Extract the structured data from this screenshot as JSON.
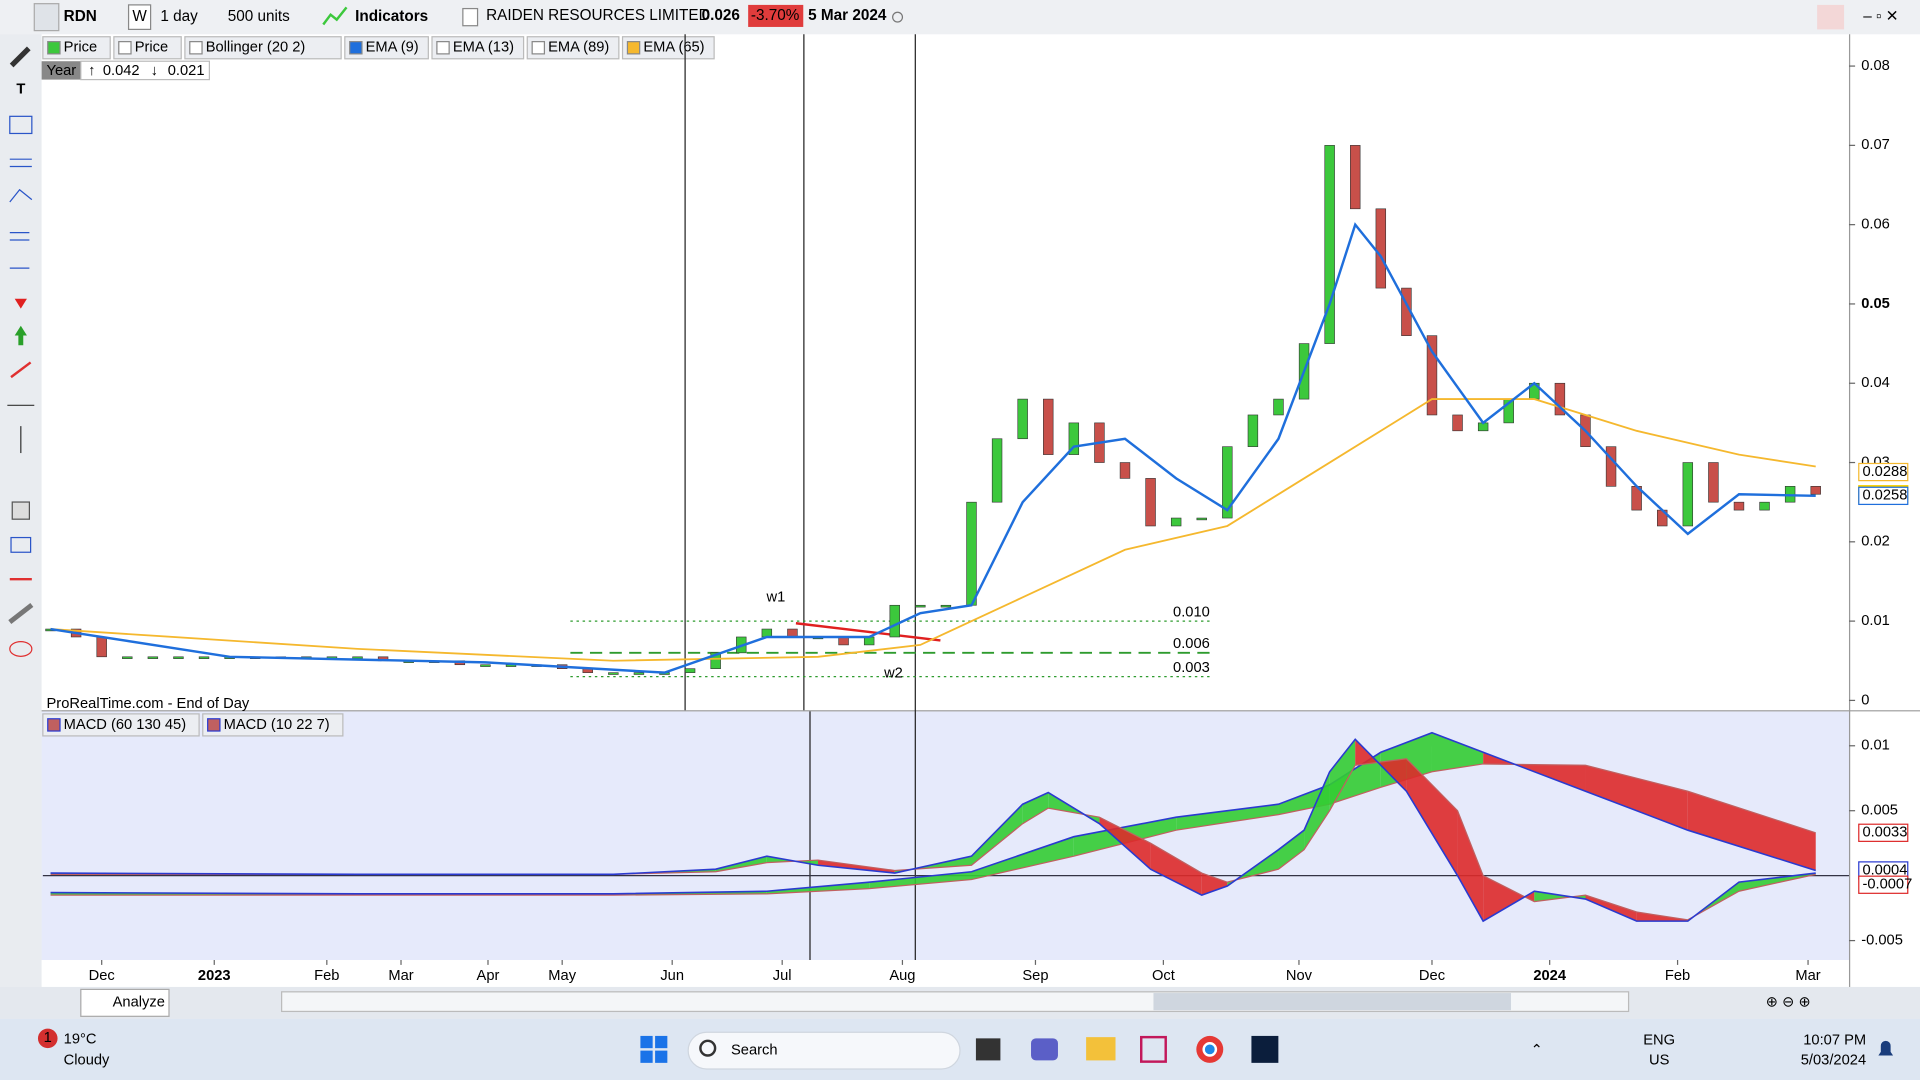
{
  "toolbar": {
    "symbol": "RDN",
    "period_button": "W",
    "timeframe": "1 day",
    "units": "500 units",
    "indicators": "Indicators",
    "instrument": "RAIDEN RESOURCES LIMITED",
    "last": "0.026",
    "change": "-3.70%",
    "date": "5 Mar 2024"
  },
  "legend": [
    "Price",
    "Price",
    "Bollinger (20 2)",
    "EMA (9)",
    "EMA (13)",
    "EMA (89)",
    "EMA (65)"
  ],
  "period": {
    "label": "Year",
    "high": "0.042",
    "low": "0.021"
  },
  "watermark": "ProRealTime.com - End of Day",
  "chart_data": [
    {
      "type": "candles",
      "xlim": [
        -2.3,
        68.3
      ],
      "xticks": [
        {
          "value": 0,
          "label": "Dec"
        },
        {
          "value": 4.4,
          "label": "2023"
        },
        {
          "value": 8.8,
          "label": "Feb"
        },
        {
          "value": 11.7,
          "label": "Mar"
        },
        {
          "value": 15.1,
          "label": "Apr"
        },
        {
          "value": 18,
          "label": "May"
        },
        {
          "value": 22.3,
          "label": "Jun"
        },
        {
          "value": 26.6,
          "label": "Jul"
        },
        {
          "value": 31.3,
          "label": "Aug"
        },
        {
          "value": 36.5,
          "label": "Sep"
        },
        {
          "value": 41.5,
          "label": "Oct"
        },
        {
          "value": 46.8,
          "label": "Nov"
        },
        {
          "value": 52,
          "label": "Dec"
        },
        {
          "value": 56.6,
          "label": "2024"
        },
        {
          "value": 61.6,
          "label": "Feb"
        },
        {
          "value": 66.7,
          "label": "Mar"
        }
      ],
      "ylim": [
        0,
        0.0837
      ],
      "yticks": [
        0,
        0.01,
        0.02,
        0.03,
        0.04,
        0.05,
        0.06,
        0.07,
        0.08
      ],
      "up_color": "#3cc83c",
      "down_color": "#c8504a",
      "series": [
        {
          "color": "#888888",
          "x": [
            -2,
            -1,
            0,
            1,
            2,
            3,
            4,
            5,
            6,
            7,
            8,
            9,
            10,
            11,
            12,
            13,
            14,
            15,
            16,
            17,
            18,
            19,
            20,
            21,
            22,
            23,
            24,
            25,
            26,
            27,
            28,
            29,
            30,
            31,
            32,
            33,
            34,
            35,
            36,
            37,
            38,
            39,
            40,
            41,
            42,
            43,
            44,
            45,
            46,
            47,
            48,
            49,
            50,
            51,
            52,
            53,
            54,
            55,
            56,
            57,
            58,
            59,
            60,
            61,
            62,
            63,
            64,
            65,
            66,
            67
          ],
          "values": [
            0.009,
            0.008,
            0.0055,
            0.0055,
            0.0055,
            0.0055,
            0.0055,
            0.0055,
            0.0055,
            0.0055,
            0.0055,
            0.0055,
            0.0055,
            0.005,
            0.005,
            0.005,
            0.0045,
            0.0045,
            0.0045,
            0.0045,
            0.004,
            0.0035,
            0.0035,
            0.0035,
            0.0035,
            0.004,
            0.006,
            0.008,
            0.009,
            0.008,
            0.008,
            0.007,
            0.008,
            0.012,
            0.012,
            0.012,
            0.025,
            0.033,
            0.038,
            0.031,
            0.035,
            0.03,
            0.028,
            0.022,
            0.023,
            0.023,
            0.032,
            0.036,
            0.038,
            0.045,
            0.07,
            0.062,
            0.052,
            0.046,
            0.036,
            0.034,
            0.035,
            0.038,
            0.04,
            0.036,
            0.032,
            0.027,
            0.024,
            0.022,
            0.03,
            0.025,
            0.024,
            0.025,
            0.027,
            0.026
          ]
        },
        {
          "color": "#1f6fdc",
          "x": [
            -2,
            5,
            15,
            22,
            26,
            30,
            32,
            34,
            36,
            38,
            40,
            42,
            44,
            46,
            48,
            49,
            50,
            52,
            54,
            56,
            58,
            60,
            62,
            64,
            67
          ],
          "values": [
            0.009,
            0.0055,
            0.0048,
            0.0035,
            0.008,
            0.008,
            0.011,
            0.012,
            0.025,
            0.032,
            0.033,
            0.028,
            0.024,
            0.033,
            0.05,
            0.06,
            0.056,
            0.044,
            0.035,
            0.04,
            0.034,
            0.027,
            0.021,
            0.026,
            0.0258
          ]
        },
        {
          "color": "#f5b82e",
          "x": [
            -2,
            10,
            20,
            28,
            32,
            36,
            40,
            44,
            48,
            52,
            56,
            60,
            64,
            67
          ],
          "values": [
            0.009,
            0.0065,
            0.005,
            0.0055,
            0.007,
            0.013,
            0.019,
            0.022,
            0.03,
            0.038,
            0.038,
            0.034,
            0.031,
            0.0295
          ]
        }
      ],
      "levels": [
        {
          "value": 0.01,
          "label": "0.010"
        },
        {
          "value": 0.006,
          "label": "0.006"
        },
        {
          "value": 0.003,
          "label": "0.003"
        }
      ],
      "level_color": "#2e9b2e",
      "annotations": [
        "w1",
        "w2"
      ],
      "price_tags": [
        {
          "value": 0.0288,
          "color": "#f5b82e"
        },
        {
          "value": 0.026,
          "color": "#f7d000"
        },
        {
          "value": 0.0258,
          "color": "#1f6fdc"
        }
      ]
    },
    {
      "type": "macd",
      "xlim": [
        -2.3,
        68.3
      ],
      "ylim": [
        -0.0064,
        0.01255
      ],
      "yticks": [
        0.01,
        0.005,
        -0.005
      ],
      "up_color": "#33cc33",
      "down_color": "#dd2a2a",
      "series": [
        {
          "name": "MACD (60 130 45)",
          "color": "#2a3ad0",
          "signal_color": "#c06060",
          "x": [
            -2,
            10,
            20,
            26,
            30,
            34,
            38,
            42,
            46,
            48,
            50,
            52,
            54,
            58,
            62,
            67
          ],
          "values": [
            -0.0013,
            -0.0014,
            -0.0014,
            -0.0012,
            -0.0005,
            0.0003,
            0.003,
            0.0045,
            0.0055,
            0.007,
            0.0095,
            0.011,
            0.0095,
            0.0065,
            0.0035,
            0.0004
          ],
          "signal": [
            -0.0015,
            -0.0015,
            -0.0015,
            -0.0014,
            -0.001,
            -0.0003,
            0.0015,
            0.0035,
            0.0047,
            0.0055,
            0.0068,
            0.008,
            0.0086,
            0.0085,
            0.0065,
            0.0033
          ]
        },
        {
          "name": "MACD (10 22 7)",
          "color": "#2a3ad0",
          "signal_color": "#c06060",
          "x": [
            -2,
            10,
            20,
            24,
            26,
            28,
            31,
            34,
            36,
            37,
            39,
            41,
            43,
            44,
            46,
            47,
            48,
            49,
            51,
            53,
            54,
            56,
            58,
            60,
            62,
            64,
            67
          ],
          "values": [
            0.0002,
            0.0001,
            0.0001,
            0.0005,
            0.0015,
            0.0008,
            0.0002,
            0.0015,
            0.0055,
            0.0064,
            0.004,
            0.0005,
            -0.0015,
            -0.0008,
            0.002,
            0.0035,
            0.008,
            0.0105,
            0.0065,
            0,
            -0.0035,
            -0.0012,
            -0.0018,
            -0.0035,
            -0.0035,
            -0.0005,
            0.0002
          ],
          "signal": [
            0.0001,
            0.0001,
            0.0001,
            0.0003,
            0.001,
            0.0012,
            0.0004,
            0.0008,
            0.004,
            0.0052,
            0.0045,
            0.0025,
            0.0002,
            -0.0005,
            0.0005,
            0.002,
            0.005,
            0.0085,
            0.009,
            0.005,
            0,
            -0.002,
            -0.0015,
            -0.0028,
            -0.0034,
            -0.0012,
            0.0001
          ]
        }
      ],
      "price_tags": [
        {
          "value": 0.0033,
          "color": "#dd2a2a"
        },
        {
          "value": 0.0004,
          "color": "#2a3ad0"
        },
        {
          "value": -0.0007,
          "color": "#dd2a2a"
        }
      ]
    }
  ],
  "bottom_bar": {
    "analyze": "Analyze"
  },
  "taskbar": {
    "badge": "1",
    "temperature": "19°C",
    "weather": "Cloudy",
    "search": "Search",
    "language": "ENG",
    "region": "US",
    "time": "10:07 PM",
    "date": "5/03/2024"
  }
}
